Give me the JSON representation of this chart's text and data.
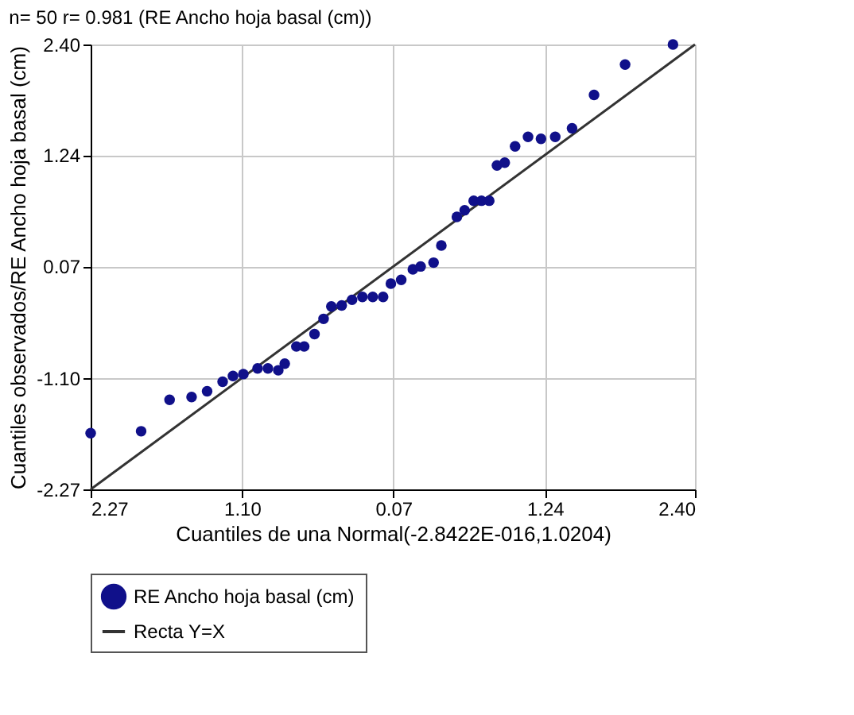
{
  "chart_data": {
    "type": "scatter",
    "title": "n= 50 r= 0.981 (RE Ancho hoja basal (cm))",
    "xlabel": "Cuantiles de una Normal(-2.8422E-016,1.0204)",
    "ylabel": "Cuantiles observados/RE Ancho hoja basal (cm)",
    "xlim": [
      -2.27,
      2.4
    ],
    "ylim": [
      -2.27,
      2.4
    ],
    "xticks": [
      {
        "value": -2.27,
        "label": "2.27"
      },
      {
        "value": -1.1,
        "label": "1.10"
      },
      {
        "value": 0.07,
        "label": "0.07"
      },
      {
        "value": 1.24,
        "label": "1.24"
      },
      {
        "value": 2.4,
        "label": "2.40"
      }
    ],
    "yticks": [
      {
        "value": -2.27,
        "label": "-2.27"
      },
      {
        "value": -1.1,
        "label": "-1.10"
      },
      {
        "value": 0.07,
        "label": "0.07"
      },
      {
        "value": 1.24,
        "label": "1.24"
      },
      {
        "value": 2.4,
        "label": "2.40"
      }
    ],
    "grid": true,
    "legend": "bottom",
    "series": [
      {
        "name": "RE Ancho hoja basal (cm)",
        "color": "#10108a",
        "marker": "circle",
        "x": [
          -2.27,
          -1.88,
          -1.66,
          -1.49,
          -1.37,
          -1.25,
          -1.17,
          -1.09,
          -0.98,
          -0.9,
          -0.82,
          -0.77,
          -0.68,
          -0.62,
          -0.54,
          -0.47,
          -0.41,
          -0.33,
          -0.25,
          -0.17,
          -0.09,
          -0.01,
          0.05,
          0.13,
          0.22,
          0.28,
          0.38,
          0.44,
          0.56,
          0.62,
          0.69,
          0.75,
          0.81,
          0.87,
          0.93,
          1.01,
          1.11,
          1.21,
          1.32,
          1.45,
          1.62,
          1.86,
          2.23
        ],
        "values": [
          -1.68,
          -1.66,
          -1.33,
          -1.3,
          -1.24,
          -1.14,
          -1.08,
          -1.06,
          -1.0,
          -1.0,
          -1.02,
          -0.95,
          -0.77,
          -0.77,
          -0.64,
          -0.48,
          -0.35,
          -0.34,
          -0.28,
          -0.25,
          -0.25,
          -0.25,
          -0.11,
          -0.07,
          0.04,
          0.07,
          0.11,
          0.29,
          0.59,
          0.66,
          0.76,
          0.76,
          0.76,
          1.13,
          1.16,
          1.33,
          1.43,
          1.41,
          1.43,
          1.52,
          1.87,
          2.19,
          2.4
        ]
      },
      {
        "name": "Recta Y=X",
        "color": "#333333",
        "type": "line",
        "line_style": "solid",
        "x": [
          -2.27,
          2.4
        ],
        "values": [
          -2.27,
          2.4
        ]
      }
    ]
  }
}
